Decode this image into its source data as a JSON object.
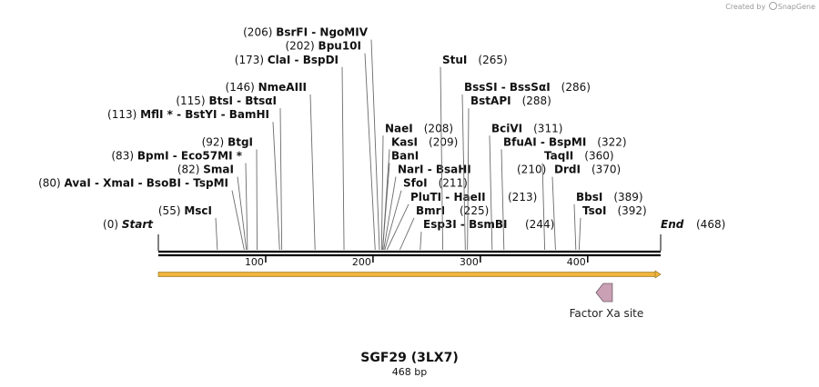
{
  "watermark": {
    "text_before": "Created by",
    "brand": "SnapGene"
  },
  "title": "SGF29 (3LX7)",
  "subtitle": "468 bp",
  "sequence_length": 468,
  "ticks": [
    100,
    200,
    300,
    400
  ],
  "ends": {
    "start": {
      "name": "Start",
      "pos": "(0)"
    },
    "end": {
      "name": "End",
      "pos": "(468)"
    }
  },
  "sites": [
    {
      "name": "MscI",
      "pos": 55,
      "pos_label": "(55)",
      "side": "left"
    },
    {
      "name": "AvaI  - XmaI  - BsoBI  - TspMI",
      "pos": 80,
      "pos_label": "(80)",
      "side": "left"
    },
    {
      "name": "SmaI",
      "pos": 82,
      "pos_label": "(82)",
      "side": "left"
    },
    {
      "name": "BpmI  - Eco57MI *",
      "pos": 83,
      "pos_label": "(83)",
      "side": "left"
    },
    {
      "name": "BtgI",
      "pos": 92,
      "pos_label": "(92)",
      "side": "left"
    },
    {
      "name": "MflI *  - BstYI  - BamHI",
      "pos": 113,
      "pos_label": "(113)",
      "side": "left"
    },
    {
      "name": "BtsI  - BtsαI",
      "pos": 115,
      "pos_label": "(115)",
      "side": "left"
    },
    {
      "name": "NmeAIII",
      "pos": 146,
      "pos_label": "(146)",
      "side": "left"
    },
    {
      "name": "ClaI  - BspDI",
      "pos": 173,
      "pos_label": "(173)",
      "side": "left"
    },
    {
      "name": "Bpu10I",
      "pos": 202,
      "pos_label": "(202)",
      "side": "left"
    },
    {
      "name": "BsrFI  - NgoMIV",
      "pos": 206,
      "pos_label": "(206)",
      "side": "left"
    },
    {
      "name": "NaeI",
      "pos": 208,
      "pos_label": "(208)",
      "side": "right"
    },
    {
      "name": "KasI",
      "pos": 209,
      "pos_label": "(209)",
      "side": "right"
    },
    {
      "name": "BanI",
      "pos": 209,
      "pos_label": "",
      "side": "right"
    },
    {
      "name": "NarI  - BsaHI",
      "pos": 210,
      "pos_label": "(210)",
      "side": "right"
    },
    {
      "name": "SfoI",
      "pos": 211,
      "pos_label": "(211)",
      "side": "right"
    },
    {
      "name": "PluTI  - HaeII",
      "pos": 213,
      "pos_label": "(213)",
      "side": "right"
    },
    {
      "name": "BmrI",
      "pos": 225,
      "pos_label": "(225)",
      "side": "right"
    },
    {
      "name": "Esp3I  - BsmBI",
      "pos": 244,
      "pos_label": "(244)",
      "side": "right"
    },
    {
      "name": "StuI",
      "pos": 265,
      "pos_label": "(265)",
      "side": "right"
    },
    {
      "name": "BssSI  - BssSαI",
      "pos": 286,
      "pos_label": "(286)",
      "side": "right"
    },
    {
      "name": "BstAPI",
      "pos": 288,
      "pos_label": "(288)",
      "side": "right"
    },
    {
      "name": "BciVI",
      "pos": 311,
      "pos_label": "(311)",
      "side": "right"
    },
    {
      "name": "BfuAI  - BspMI",
      "pos": 322,
      "pos_label": "(322)",
      "side": "right"
    },
    {
      "name": "TaqII",
      "pos": 360,
      "pos_label": "(360)",
      "side": "right"
    },
    {
      "name": "DrdI",
      "pos": 370,
      "pos_label": "(370)",
      "side": "right"
    },
    {
      "name": "BbsI",
      "pos": 389,
      "pos_label": "(389)",
      "side": "right"
    },
    {
      "name": "TsoI",
      "pos": 392,
      "pos_label": "(392)",
      "side": "right"
    }
  ],
  "features": [
    {
      "name": "Factor Xa site",
      "start": 412,
      "end": 423,
      "direction": "reverse",
      "color": "#c9a0b4"
    }
  ],
  "orf": {
    "start": 0,
    "end": 468,
    "color": "#f0b43c"
  },
  "colors": {
    "backbone": "#000000",
    "site_line": "#6b6b6b"
  }
}
